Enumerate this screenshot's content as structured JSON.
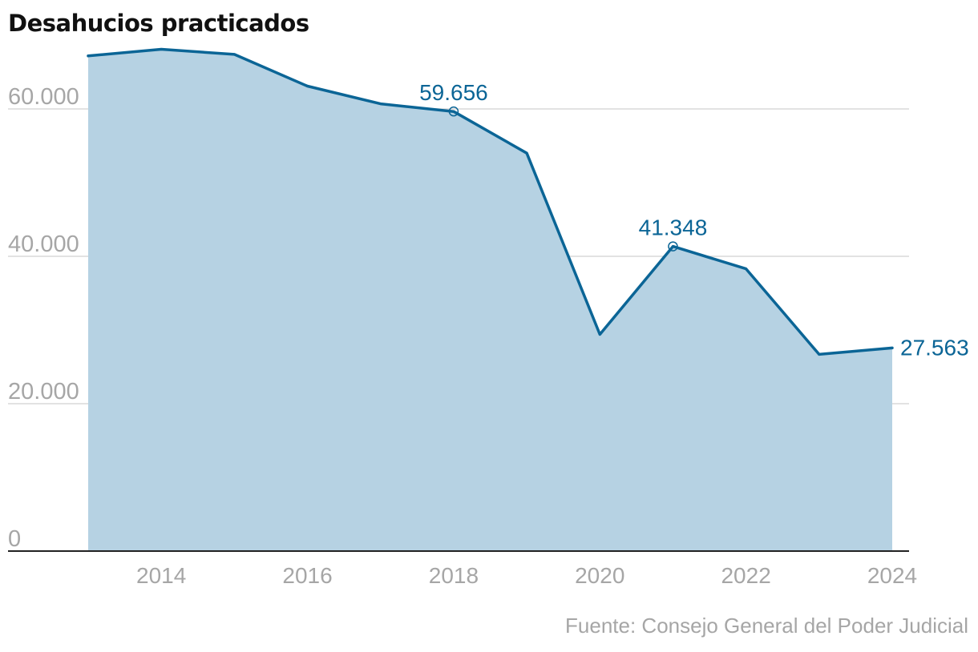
{
  "title": "Desahucios practicados",
  "source": "Fuente: Consejo General del Poder Judicial",
  "colors": {
    "line": "#0b6596",
    "area": "#b6d2e3",
    "grid": "#d9d9d9",
    "axis": "#222222",
    "tick_label": "#a6a6a6",
    "annotation": "#0b6596"
  },
  "chart_data": {
    "type": "area",
    "x": [
      2013,
      2014,
      2015,
      2016,
      2017,
      2018,
      2019,
      2020,
      2021,
      2022,
      2023,
      2024
    ],
    "values": [
      67200,
      68100,
      67400,
      63100,
      60700,
      59656,
      54000,
      29400,
      41348,
      38300,
      26700,
      27563
    ],
    "xlim": [
      2013,
      2024
    ],
    "ylim": [
      0,
      70000
    ],
    "x_ticks": [
      2014,
      2016,
      2018,
      2020,
      2022,
      2024
    ],
    "x_tick_labels": [
      "2014",
      "2016",
      "2018",
      "2020",
      "2022",
      "2024"
    ],
    "y_ticks": [
      0,
      20000,
      40000,
      60000
    ],
    "y_tick_labels": [
      "0",
      "20.000",
      "40.000",
      "60.000"
    ],
    "grid": true,
    "annotations": [
      {
        "x": 2018,
        "y": 59656,
        "label": "59.656",
        "marker": true
      },
      {
        "x": 2021,
        "y": 41348,
        "label": "41.348",
        "marker": true
      },
      {
        "x": 2024,
        "y": 27563,
        "label": "27.563",
        "marker": false
      }
    ]
  }
}
